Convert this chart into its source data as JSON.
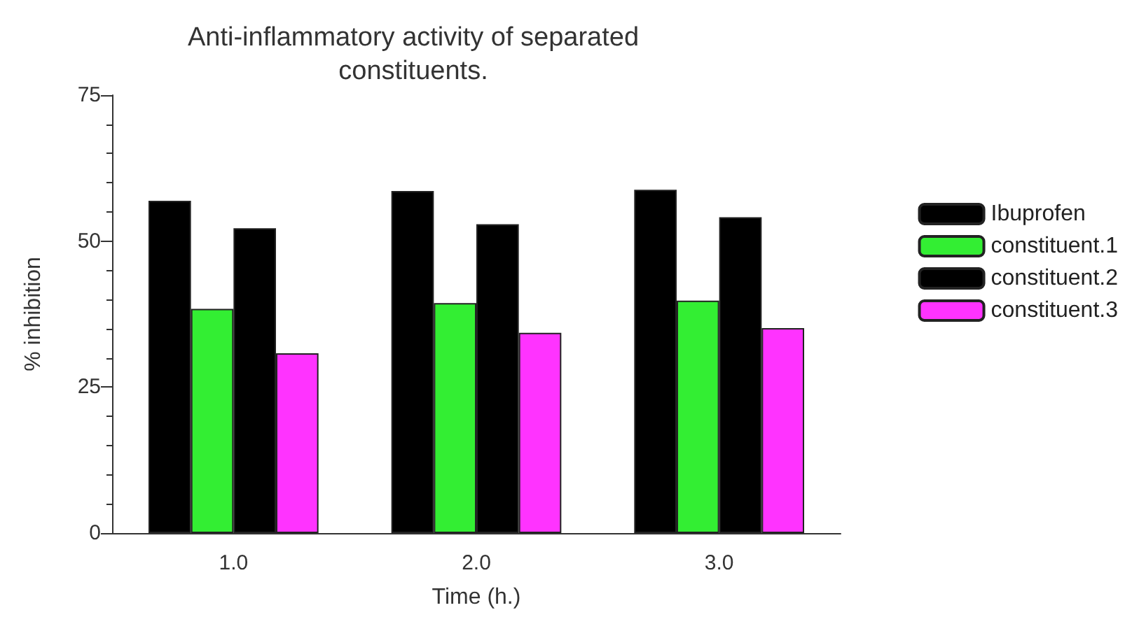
{
  "chart_data": {
    "type": "bar",
    "title": "Anti-inflammatory activity of separated\nconstituents.",
    "xlabel": "Time (h.)",
    "ylabel": "% inhibition",
    "categories": [
      "1.0",
      "2.0",
      "3.0"
    ],
    "series": [
      {
        "name": "Ibuprofen",
        "color": "#000000",
        "values": [
          56.9,
          58.6,
          58.8
        ]
      },
      {
        "name": "constituent.1",
        "color": "#33ee33",
        "values": [
          38.4,
          39.4,
          39.8
        ]
      },
      {
        "name": "constituent.2",
        "color": "#000000",
        "values": [
          52.2,
          52.9,
          54.1
        ]
      },
      {
        "name": "constituent.3",
        "color": "#ff33ff",
        "values": [
          30.8,
          34.3,
          35.1
        ]
      }
    ],
    "ylim": [
      0,
      75
    ],
    "yticks": [
      0,
      25,
      50,
      75
    ],
    "grid": false,
    "legend": "right"
  }
}
